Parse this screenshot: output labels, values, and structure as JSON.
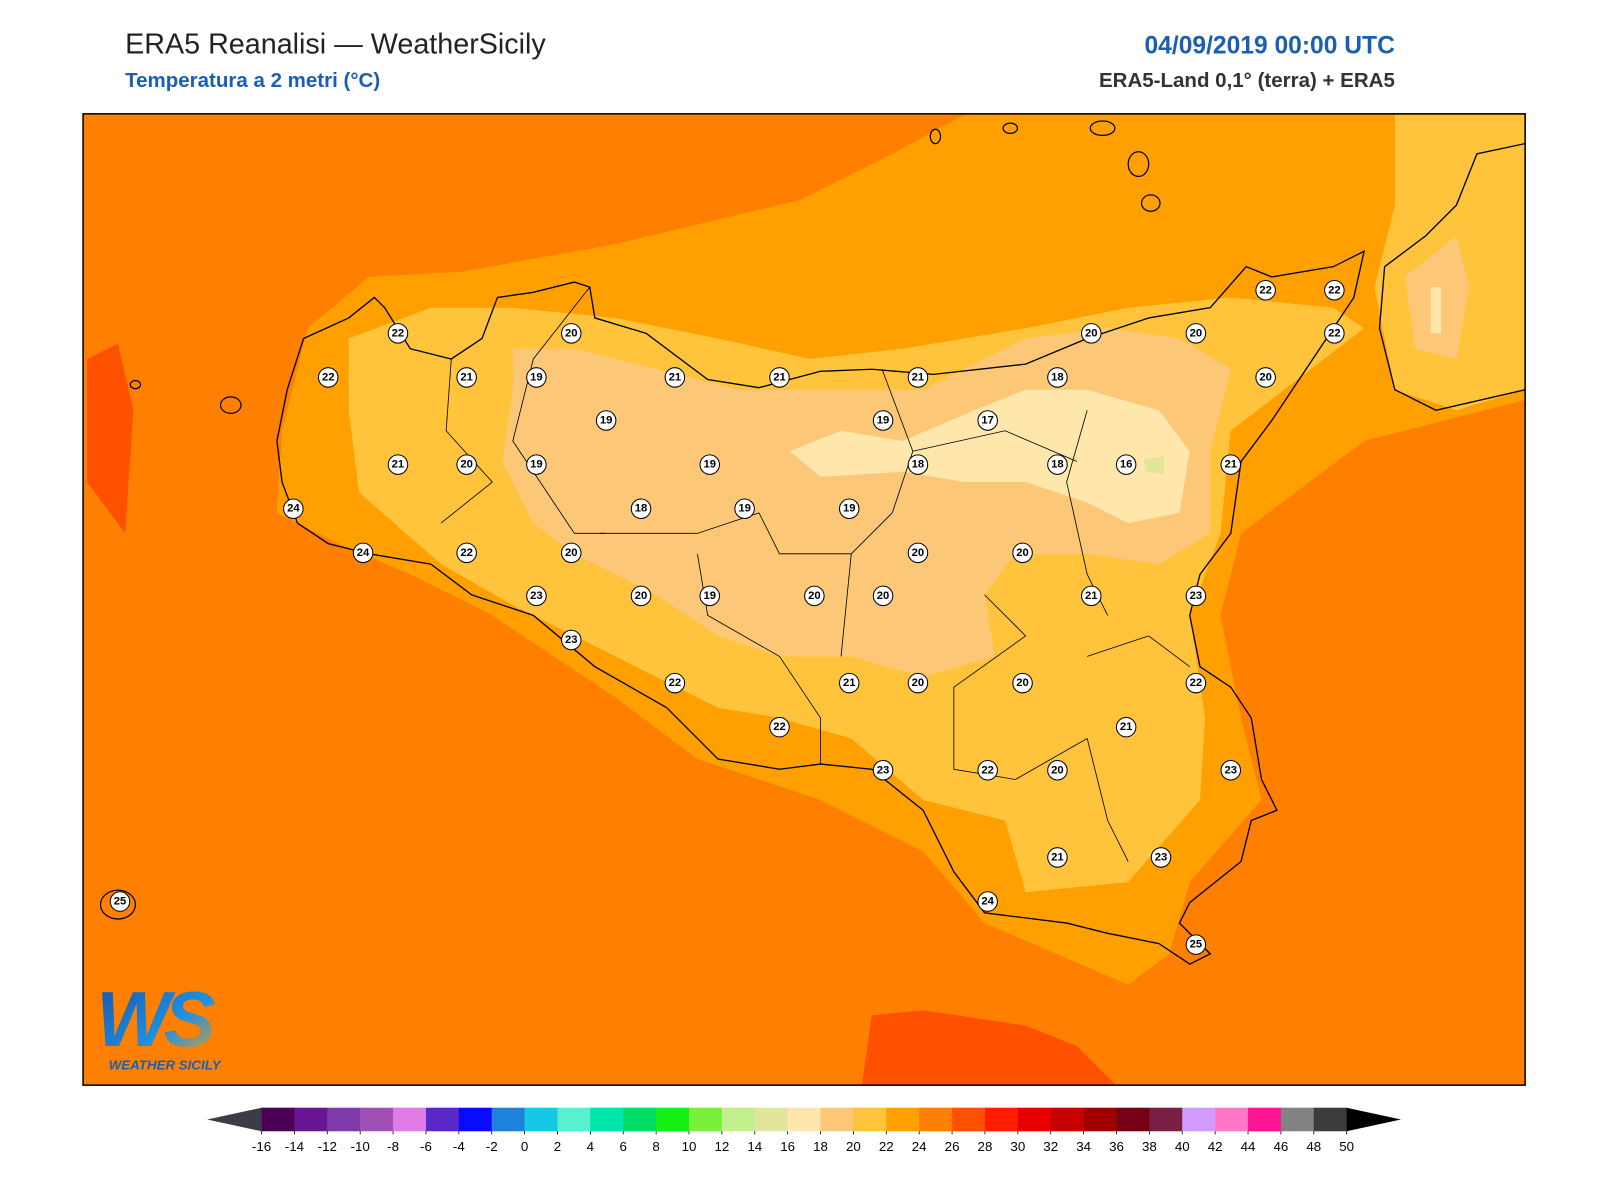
{
  "header": {
    "title": "ERA5 Reanalisi — WeatherSicily",
    "subtitle": "Temperatura a 2 metri (°C)",
    "date": "04/09/2019 00:00 UTC",
    "source": "ERA5-Land 0,1° (terra) + ERA5"
  },
  "map": {
    "stations": [
      22,
      20,
      22,
      21,
      19,
      21,
      21,
      21,
      18,
      20,
      20,
      22,
      22,
      22,
      20,
      19,
      19,
      17,
      21,
      20,
      19,
      19,
      18,
      18,
      16,
      21,
      24,
      18,
      19,
      19,
      24,
      22,
      20,
      20,
      20,
      23,
      20,
      19,
      20,
      20,
      21,
      23,
      23,
      22,
      21,
      20,
      20,
      22,
      22,
      21,
      23,
      22,
      20,
      23,
      21,
      23,
      24,
      25,
      25
    ]
  },
  "colorbar": {
    "ticks": [
      -16,
      -14,
      -12,
      -10,
      -8,
      -6,
      -4,
      -2,
      0,
      2,
      4,
      6,
      8,
      10,
      12,
      14,
      16,
      18,
      20,
      22,
      24,
      26,
      28,
      30,
      32,
      34,
      36,
      38,
      40,
      42,
      44,
      46,
      48,
      50
    ],
    "colors": [
      "#4b0055",
      "#6a1496",
      "#7e3aaa",
      "#a050b4",
      "#e07be8",
      "#5a28c8",
      "#0a0aff",
      "#1e82dc",
      "#14c8e6",
      "#5af0d2",
      "#00e6aa",
      "#00dc64",
      "#14f014",
      "#78f03c",
      "#c3ef8c",
      "#e1e69b",
      "#ffe6aa",
      "#fcc878",
      "#ffc43c",
      "#ffa000",
      "#ff8000",
      "#ff5000",
      "#ff1e00",
      "#e60000",
      "#c80000",
      "#a00000",
      "#780014",
      "#7a1e46",
      "#d29bff",
      "#ff78c8",
      "#ff1496",
      "#828282",
      "#3c3c3c"
    ],
    "under_color": "#3c3c46",
    "over_color": "#000000"
  },
  "logo": {
    "mark": "WS",
    "name": "WEATHER SICILY"
  }
}
